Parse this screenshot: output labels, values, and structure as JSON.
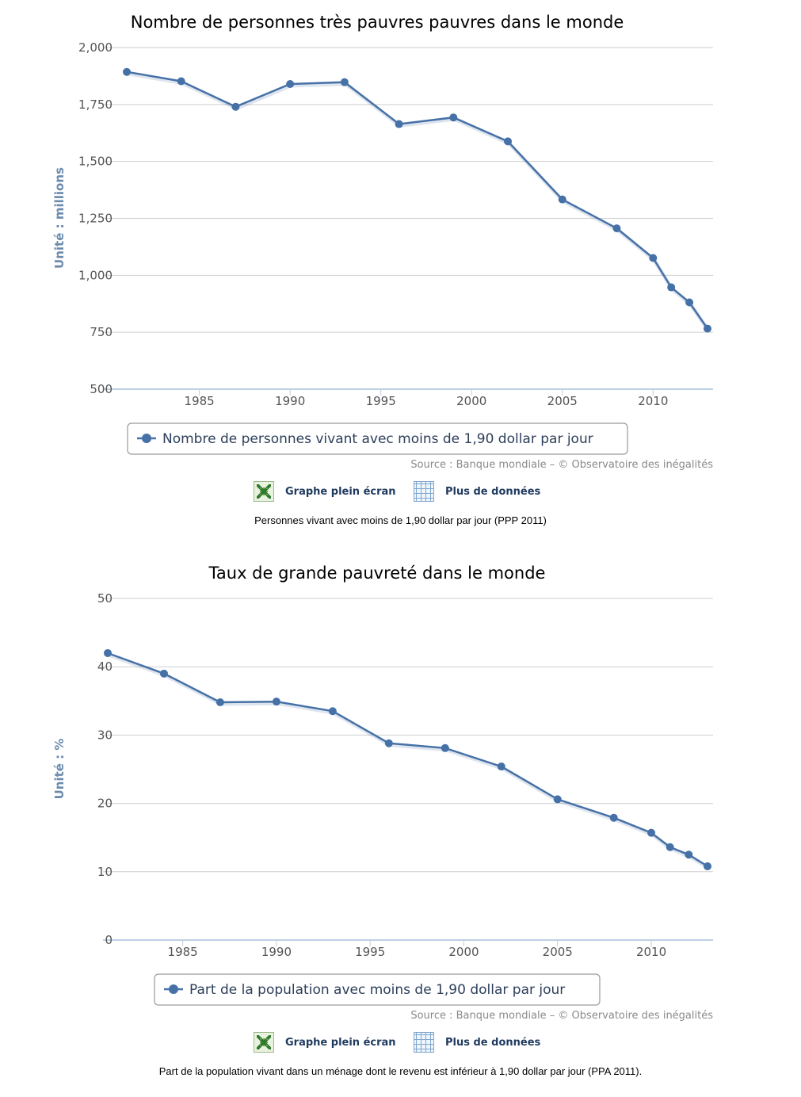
{
  "chart_data": [
    {
      "type": "line",
      "title": "Nombre de personnes très pauvres pauvres dans le monde",
      "xlabel": "",
      "ylabel": "Unité : millions",
      "ylim": [
        500,
        2000
      ],
      "xlim": [
        1981,
        2013
      ],
      "yticks": [
        "500",
        "750",
        "1,000",
        "1,250",
        "1,500",
        "1,750",
        "2,000"
      ],
      "ytick_values": [
        500,
        750,
        1000,
        1250,
        1500,
        1750,
        2000
      ],
      "xticks": [
        1985,
        1990,
        1995,
        2000,
        2005,
        2010
      ],
      "grid": true,
      "series": [
        {
          "name": "Nombre de personnes vivant avec moins de 1,90 dollar par jour",
          "x": [
            1981,
            1984,
            1987,
            1990,
            1993,
            1996,
            1999,
            2002,
            2005,
            2008,
            2010,
            2011,
            2012,
            2013
          ],
          "values": [
            1893,
            1852,
            1740,
            1840,
            1848,
            1664,
            1693,
            1588,
            1333,
            1206,
            1076,
            947,
            881,
            766
          ]
        }
      ],
      "source": "Source : Banque mondiale – © Observatoire des inégalités"
    },
    {
      "type": "line",
      "title": "Taux de grande pauvreté dans le monde",
      "xlabel": "",
      "ylabel": "Unité : %",
      "ylim": [
        0,
        50
      ],
      "xlim": [
        1981,
        2013
      ],
      "yticks": [
        "0",
        "10",
        "20",
        "30",
        "40",
        "50"
      ],
      "ytick_values": [
        0,
        10,
        20,
        30,
        40,
        50
      ],
      "xticks": [
        1985,
        1990,
        1995,
        2000,
        2005,
        2010
      ],
      "grid": true,
      "series": [
        {
          "name": "Part de la population avec moins de 1,90 dollar par jour",
          "x": [
            1981,
            1984,
            1987,
            1990,
            1993,
            1996,
            1999,
            2002,
            2005,
            2008,
            2010,
            2011,
            2012,
            2013
          ],
          "values": [
            42.0,
            39.0,
            34.8,
            34.9,
            33.5,
            28.8,
            28.1,
            25.4,
            20.6,
            17.9,
            15.7,
            13.6,
            12.5,
            10.8
          ]
        }
      ],
      "source": "Source : Banque mondiale – © Observatoire des inégalités"
    }
  ],
  "charts": [
    {
      "toolbar": {
        "fullscreen_label": "Graphe plein écran",
        "data_label": "Plus de données"
      },
      "caption": "Personnes vivant avec moins de 1,90 dollar par jour (PPP 2011)"
    },
    {
      "toolbar": {
        "fullscreen_label": "Graphe plein écran",
        "data_label": "Plus de données"
      },
      "caption": "Part de la population vivant dans un ménage dont le revenu est inférieur à 1,90 dollar par jour (PPA 2011)."
    }
  ],
  "colors": {
    "series": "#4671a7",
    "ylabel": "#6b8bad",
    "grid": "#cfcfcf",
    "axis": "#bcd0e3"
  }
}
